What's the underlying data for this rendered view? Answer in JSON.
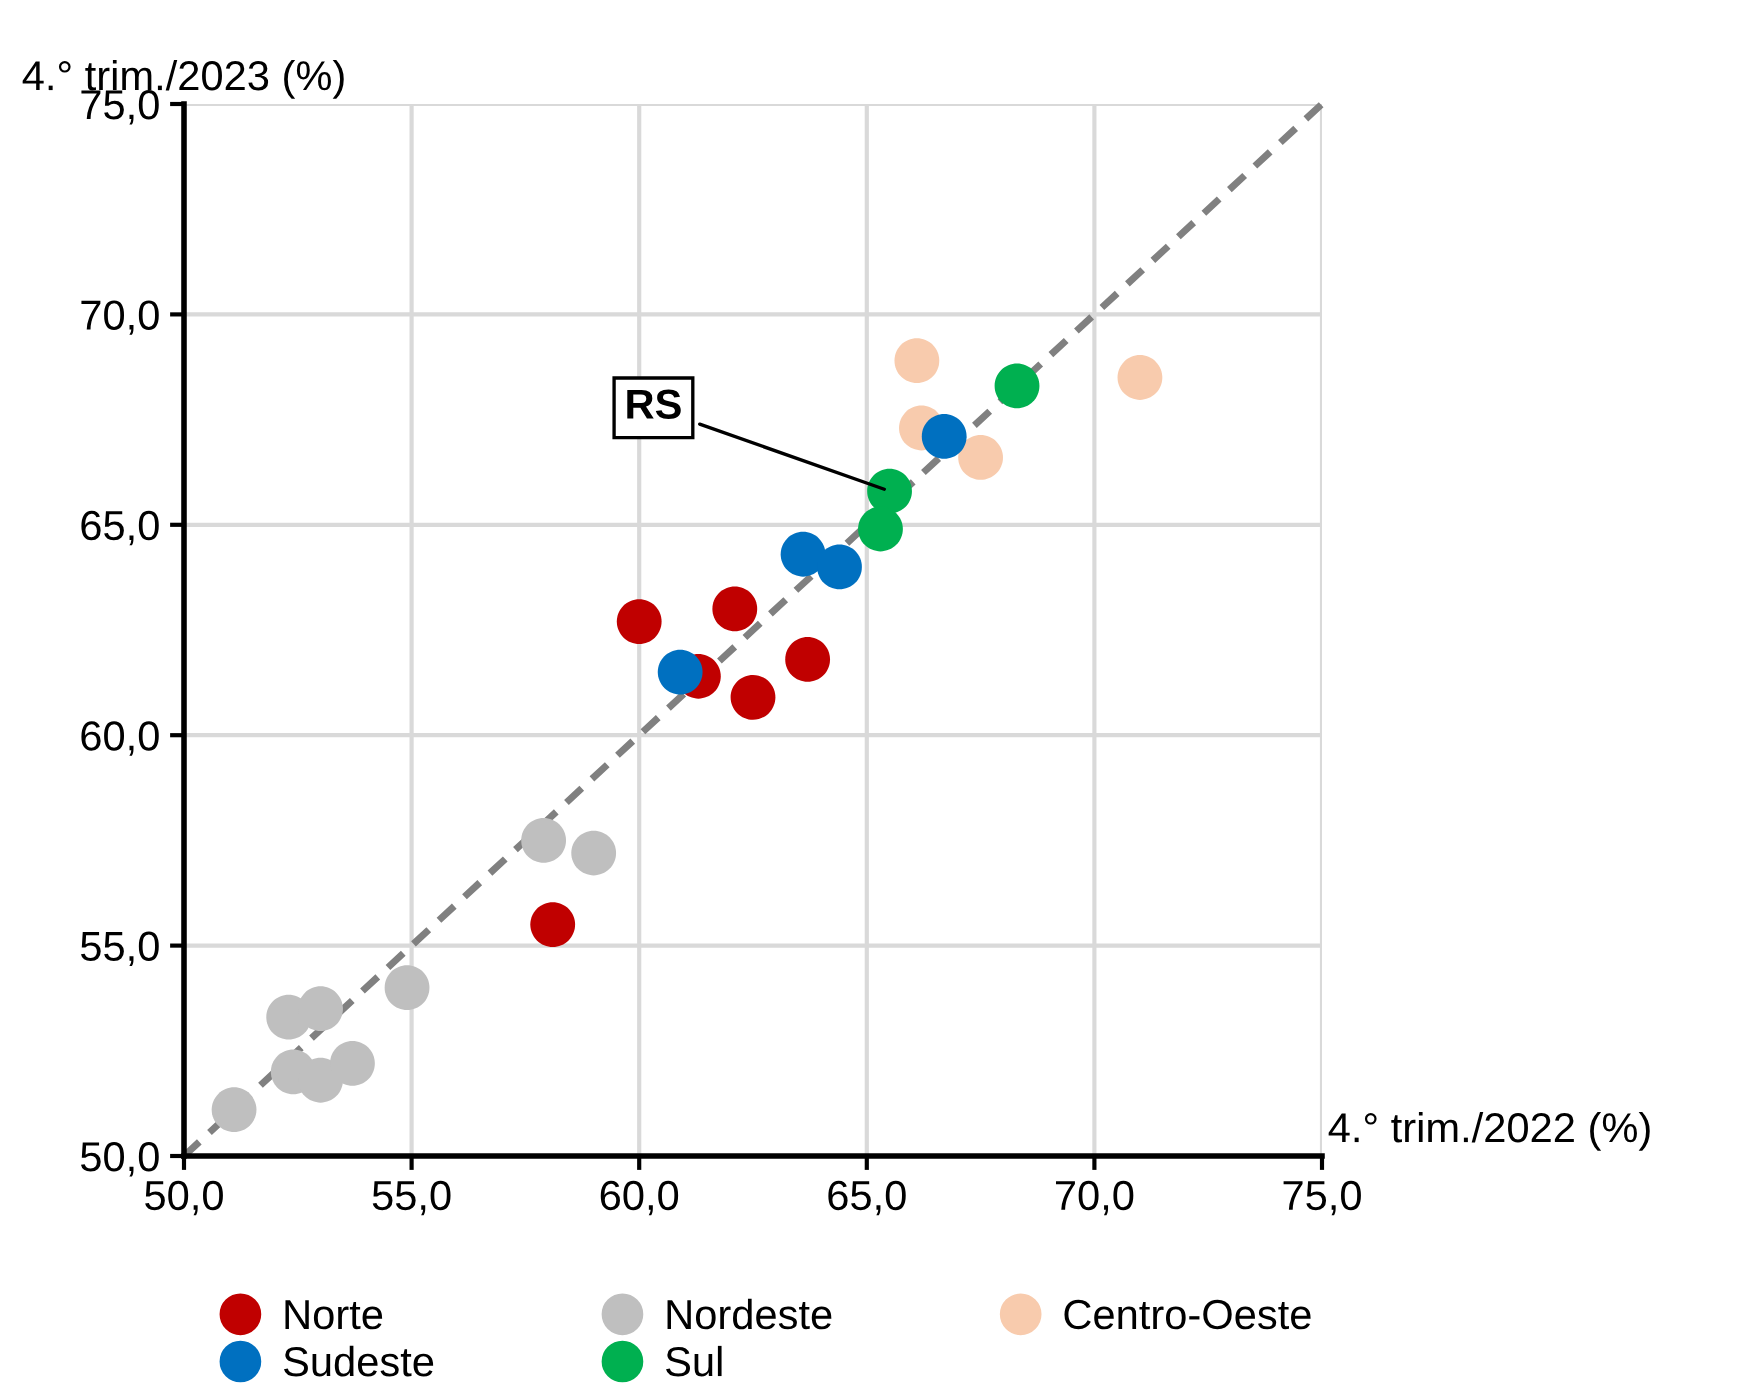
{
  "chart_data": {
    "type": "scatter",
    "xlabel": "4.° trim./2022 (%)",
    "ylabel": "4.° trim./2023 (%)",
    "xlim": [
      50,
      75
    ],
    "ylim": [
      50,
      75
    ],
    "xticks": [
      {
        "value": 50,
        "label": "50,0"
      },
      {
        "value": 55,
        "label": "55,0"
      },
      {
        "value": 60,
        "label": "60,0"
      },
      {
        "value": 65,
        "label": "65,0"
      },
      {
        "value": 70,
        "label": "70,0"
      },
      {
        "value": 75,
        "label": "75,0"
      }
    ],
    "yticks": [
      {
        "value": 50,
        "label": "50,0"
      },
      {
        "value": 55,
        "label": "55,0"
      },
      {
        "value": 60,
        "label": "60,0"
      },
      {
        "value": 65,
        "label": "65,0"
      },
      {
        "value": 70,
        "label": "70,0"
      },
      {
        "value": 75,
        "label": "75,0"
      }
    ],
    "grid": true,
    "legend": "bottom",
    "marker": "circle",
    "series": [
      {
        "name": "Norte",
        "color": "#c00000",
        "x": [
          60.0,
          62.1,
          61.3,
          62.5,
          63.7,
          58.1
        ],
        "values": [
          62.7,
          63.0,
          61.4,
          60.9,
          61.8,
          55.5
        ]
      },
      {
        "name": "Nordeste",
        "color": "#bfbfbf",
        "x": [
          57.9,
          59.0,
          54.9,
          52.3,
          53.0,
          52.4,
          53.0,
          53.7,
          51.1
        ],
        "values": [
          57.5,
          57.2,
          54.0,
          53.3,
          53.5,
          52.0,
          51.8,
          52.2,
          51.1
        ]
      },
      {
        "name": "Centro-Oeste",
        "color": "#f8cbad",
        "x": [
          66.1,
          66.2,
          67.5,
          71.0
        ],
        "values": [
          68.9,
          67.3,
          66.6,
          68.5
        ]
      },
      {
        "name": "Sudeste",
        "color": "#0070c0",
        "x": [
          60.9,
          63.6,
          64.4,
          66.7
        ],
        "values": [
          61.5,
          64.3,
          64.0,
          67.1
        ]
      },
      {
        "name": "Sul",
        "color": "#00b050",
        "x": [
          65.5,
          65.3,
          68.3
        ],
        "values": [
          65.8,
          64.9,
          68.3
        ]
      },
      {
        "type": "line",
        "color": "#808080",
        "line_style": "dashed",
        "marker": "none",
        "x": [
          50,
          75
        ],
        "values": [
          50,
          75
        ]
      }
    ],
    "annotations": [
      {
        "text": "RS",
        "x": 65.5,
        "y": 65.8
      }
    ]
  }
}
